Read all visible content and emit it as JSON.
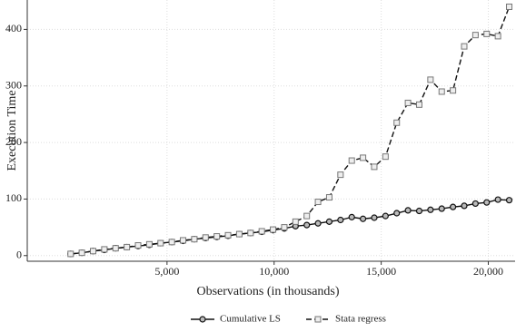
{
  "chart_data": {
    "type": "line",
    "xlabel": "Observations (in thousands)",
    "ylabel": "Execution Time",
    "x": [
      500,
      1025,
      1550,
      2075,
      2600,
      3125,
      3650,
      4175,
      4700,
      5225,
      5750,
      6275,
      6800,
      7325,
      7850,
      8375,
      8900,
      9425,
      9950,
      10475,
      11000,
      11525,
      12050,
      12575,
      13100,
      13625,
      14150,
      14675,
      15200,
      15725,
      16250,
      16775,
      17300,
      17825,
      18350,
      18875,
      19400,
      19925,
      20450,
      20975
    ],
    "series": [
      {
        "name": "Cumulative LS",
        "color": "#111111",
        "marker": "circle",
        "dash": false,
        "values": [
          3,
          5,
          8,
          10,
          13,
          15,
          17,
          19,
          22,
          24,
          26,
          29,
          31,
          33,
          35,
          38,
          40,
          42,
          45,
          48,
          52,
          54,
          57,
          60,
          63,
          68,
          65,
          67,
          70,
          75,
          80,
          79,
          81,
          83,
          86,
          88,
          92,
          94,
          99,
          98
        ]
      },
      {
        "name": "Stata regress",
        "color": "#111111",
        "marker": "square",
        "dash": true,
        "values": [
          3,
          5,
          8,
          11,
          13,
          15,
          18,
          20,
          22,
          24,
          27,
          29,
          32,
          34,
          36,
          38,
          40,
          43,
          46,
          50,
          60,
          70,
          95,
          103,
          143,
          168,
          173,
          157,
          175,
          235,
          270,
          267,
          311,
          290,
          292,
          370,
          390,
          392,
          388,
          440
        ]
      }
    ],
    "xlim": [
      -1525,
      21250
    ],
    "xticks": [
      {
        "value": 5000,
        "label": "5,000"
      },
      {
        "value": 10000,
        "label": "10,000"
      },
      {
        "value": 15000,
        "label": "15,000"
      },
      {
        "value": 20000,
        "label": "20,000"
      }
    ],
    "ylim": [
      -10,
      452
    ],
    "yticks": [
      0,
      100,
      200,
      300,
      400
    ],
    "grid": true,
    "legend": "bottom"
  }
}
